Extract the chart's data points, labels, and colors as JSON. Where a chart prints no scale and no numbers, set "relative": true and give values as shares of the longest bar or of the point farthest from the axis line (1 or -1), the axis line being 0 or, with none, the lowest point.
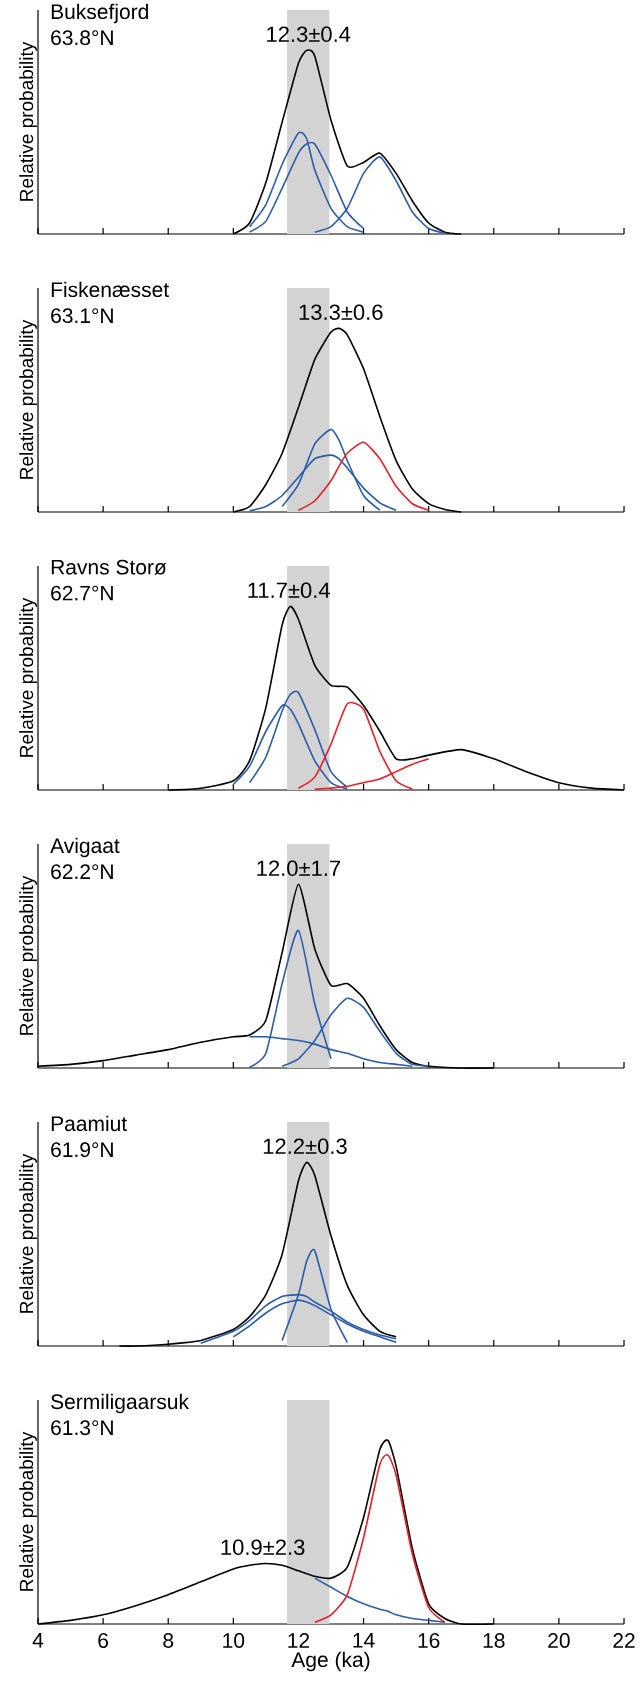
{
  "chart_data": [
    {
      "type": "line",
      "title": "Buksefjord",
      "subtitle": "63.8°N",
      "ylabel": "Relative probability",
      "relative": true,
      "tick_labels": false,
      "xlim": [
        4,
        22
      ],
      "xticks": [
        4,
        6,
        8,
        10,
        12,
        14,
        16,
        18,
        20,
        22
      ],
      "bands": [
        {
          "axis": "x",
          "from": 11.65,
          "to": 12.95,
          "color": "#d3d3d3"
        }
      ],
      "annotations": [
        {
          "text": "12.3±0.4",
          "x": 12.3,
          "y": 1
        }
      ],
      "series": [
        {
          "color": "#000000",
          "x": [
            10,
            10.5,
            11,
            11.5,
            12,
            12.25,
            12.5,
            13,
            13.5,
            14,
            14.5,
            15,
            15.5,
            16,
            16.5,
            17
          ],
          "values": [
            0,
            0.06,
            0.28,
            0.61,
            0.93,
            1,
            0.97,
            0.62,
            0.37,
            0.39,
            0.44,
            0.33,
            0.18,
            0.06,
            0.01,
            0
          ]
        },
        {
          "color": "#2a5caa",
          "x": [
            10.5,
            11,
            11.5,
            12,
            12.25,
            12.5,
            13,
            13.5,
            14
          ],
          "values": [
            0.04,
            0.16,
            0.38,
            0.55,
            0.52,
            0.35,
            0.14,
            0.04,
            0.01
          ]
        },
        {
          "color": "#2a5caa",
          "x": [
            10.5,
            11,
            11.5,
            12,
            12.25,
            12.5,
            13,
            13.5,
            14
          ],
          "values": [
            0.01,
            0.07,
            0.25,
            0.44,
            0.49,
            0.49,
            0.32,
            0.12,
            0.03
          ]
        },
        {
          "color": "#2a5caa",
          "x": [
            12.5,
            13,
            13.5,
            14,
            14.5,
            15,
            15.5,
            16,
            16.5
          ],
          "values": [
            0.01,
            0.04,
            0.14,
            0.33,
            0.42,
            0.29,
            0.12,
            0.03,
            0.005
          ]
        }
      ]
    },
    {
      "type": "line",
      "title": "Fiskenæsset",
      "subtitle": "63.1°N",
      "ylabel": "Relative probability",
      "relative": true,
      "tick_labels": false,
      "xlim": [
        4,
        22
      ],
      "xticks": [
        4,
        6,
        8,
        10,
        12,
        14,
        16,
        18,
        20,
        22
      ],
      "bands": [
        {
          "axis": "x",
          "from": 11.65,
          "to": 12.95,
          "color": "#d3d3d3"
        }
      ],
      "annotations": [
        {
          "text": "13.3±0.6",
          "x": 13.3,
          "y": 1
        }
      ],
      "series": [
        {
          "color": "#000000",
          "x": [
            10,
            10.5,
            11,
            11.5,
            12,
            12.5,
            13,
            13.25,
            13.5,
            14,
            14.5,
            15,
            15.5,
            16,
            16.5,
            17
          ],
          "values": [
            0,
            0.03,
            0.15,
            0.32,
            0.57,
            0.83,
            0.98,
            1,
            0.965,
            0.78,
            0.52,
            0.28,
            0.125,
            0.046,
            0.014,
            0
          ]
        },
        {
          "color": "#2a5caa",
          "x": [
            11.5,
            12,
            12.5,
            13,
            13.25,
            13.5,
            14,
            14.5
          ],
          "values": [
            0.03,
            0.15,
            0.37,
            0.45,
            0.39,
            0.28,
            0.09,
            0.01
          ]
        },
        {
          "color": "#2a5caa",
          "x": [
            10.5,
            11,
            11.5,
            12,
            12.5,
            13,
            13.25,
            13.5,
            14,
            14.5,
            15
          ],
          "values": [
            0.007,
            0.03,
            0.09,
            0.19,
            0.29,
            0.31,
            0.29,
            0.24,
            0.13,
            0.05,
            0.01
          ]
        },
        {
          "color": "#e3202a",
          "x": [
            12,
            12.5,
            13,
            13.25,
            13.5,
            14,
            14.5,
            15,
            15.5,
            16
          ],
          "values": [
            0.01,
            0.06,
            0.17,
            0.25,
            0.32,
            0.38,
            0.29,
            0.14,
            0.045,
            0.01
          ]
        }
      ]
    },
    {
      "type": "line",
      "title": "Ravns Storø",
      "subtitle": "62.7°N",
      "ylabel": "Relative probability",
      "relative": true,
      "tick_labels": false,
      "xlim": [
        4,
        22
      ],
      "xticks": [
        4,
        6,
        8,
        10,
        12,
        14,
        16,
        18,
        20,
        22
      ],
      "bands": [
        {
          "axis": "x",
          "from": 11.65,
          "to": 12.95,
          "color": "#d3d3d3"
        }
      ],
      "annotations": [
        {
          "text": "11.7±0.4",
          "x": 11.7,
          "y": 1
        }
      ],
      "series": [
        {
          "color": "#000000",
          "x": [
            8,
            9,
            10,
            10.5,
            11,
            11.5,
            11.75,
            12,
            12.5,
            13,
            13.5,
            14,
            14.5,
            15,
            15.5,
            16,
            17,
            18,
            19,
            20,
            21,
            22
          ],
          "values": [
            0,
            0.01,
            0.05,
            0.16,
            0.45,
            0.9,
            1,
            0.93,
            0.68,
            0.57,
            0.56,
            0.46,
            0.32,
            0.17,
            0.17,
            0.19,
            0.22,
            0.17,
            0.1,
            0.04,
            0.01,
            0
          ]
        },
        {
          "color": "#2a5caa",
          "x": [
            10,
            10.5,
            11,
            11.5,
            11.75,
            12,
            12.5,
            13,
            13.5
          ],
          "values": [
            0.03,
            0.13,
            0.32,
            0.46,
            0.44,
            0.36,
            0.16,
            0.04,
            0.005
          ]
        },
        {
          "color": "#2a5caa",
          "x": [
            10.5,
            11,
            11.5,
            11.75,
            12,
            12.5,
            13,
            13.5
          ],
          "values": [
            0.04,
            0.18,
            0.43,
            0.52,
            0.53,
            0.33,
            0.1,
            0.015
          ]
        },
        {
          "color": "#e3202a",
          "x": [
            12,
            12.5,
            13,
            13.5,
            14,
            14.5,
            15,
            15.5
          ],
          "values": [
            0.01,
            0.07,
            0.25,
            0.47,
            0.44,
            0.21,
            0.05,
            0.005
          ]
        },
        {
          "color": "#e3202a",
          "x": [
            12.5,
            13,
            13.5,
            14,
            14.5,
            15,
            15.5,
            16
          ],
          "values": [
            0.004,
            0.01,
            0.02,
            0.04,
            0.06,
            0.1,
            0.14,
            0.17
          ]
        }
      ]
    },
    {
      "type": "line",
      "title": "Avigaat",
      "subtitle": "62.2°N",
      "ylabel": "Relative probability",
      "relative": true,
      "tick_labels": false,
      "xlim": [
        4,
        22
      ],
      "xticks": [
        4,
        6,
        8,
        10,
        12,
        14,
        16,
        18,
        20,
        22
      ],
      "bands": [
        {
          "axis": "x",
          "from": 11.65,
          "to": 12.95,
          "color": "#d3d3d3"
        }
      ],
      "annotations": [
        {
          "text": "12.0±1.7",
          "x": 12.0,
          "y": 1
        }
      ],
      "series": [
        {
          "color": "#000000",
          "x": [
            4,
            5,
            6,
            7,
            8,
            9,
            10,
            10.5,
            11,
            11.5,
            12,
            12.5,
            13,
            13.5,
            14,
            14.5,
            15,
            15.5,
            16,
            17,
            18
          ],
          "values": [
            0.01,
            0.02,
            0.04,
            0.07,
            0.1,
            0.14,
            0.17,
            0.18,
            0.26,
            0.63,
            1,
            0.65,
            0.45,
            0.46,
            0.38,
            0.23,
            0.1,
            0.03,
            0.01,
            0,
            0
          ]
        },
        {
          "color": "#2a5caa",
          "x": [
            10.5,
            11,
            11.5,
            12,
            12.5,
            13
          ],
          "values": [
            0.004,
            0.08,
            0.46,
            0.75,
            0.35,
            0.05
          ]
        },
        {
          "color": "#2a5caa",
          "x": [
            11.5,
            12,
            12.5,
            13,
            13.5,
            14,
            14.5,
            15,
            15.5,
            16
          ],
          "values": [
            0.01,
            0.05,
            0.15,
            0.29,
            0.38,
            0.33,
            0.2,
            0.08,
            0.02,
            0.01
          ]
        },
        {
          "color": "#2a5caa",
          "x": [
            10.5,
            11,
            11.5,
            12,
            12.5,
            13,
            13.5,
            14,
            14.5,
            15,
            15.5
          ],
          "values": [
            0.17,
            0.17,
            0.16,
            0.15,
            0.13,
            0.1,
            0.08,
            0.05,
            0.03,
            0.02,
            0.01
          ]
        }
      ]
    },
    {
      "type": "line",
      "title": "Paamiut",
      "subtitle": "61.9°N",
      "ylabel": "Relative probability",
      "relative": true,
      "tick_labels": false,
      "xlim": [
        4,
        22
      ],
      "xticks": [
        4,
        6,
        8,
        10,
        12,
        14,
        16,
        18,
        20,
        22
      ],
      "bands": [
        {
          "axis": "x",
          "from": 11.65,
          "to": 12.95,
          "color": "#d3d3d3"
        }
      ],
      "annotations": [
        {
          "text": "12.2±0.3",
          "x": 12.2,
          "y": 1
        }
      ],
      "series": [
        {
          "color": "#000000",
          "x": [
            6.5,
            7,
            8,
            9,
            10,
            10.5,
            11,
            11.5,
            12,
            12.25,
            12.5,
            13,
            13.5,
            14,
            14.5,
            15
          ],
          "values": [
            0,
            0,
            0.01,
            0.03,
            0.09,
            0.16,
            0.28,
            0.5,
            0.9,
            1,
            0.93,
            0.6,
            0.33,
            0.17,
            0.08,
            0.05
          ]
        },
        {
          "color": "#2a5caa",
          "x": [
            11.5,
            12,
            12.25,
            12.5,
            13,
            13.5
          ],
          "values": [
            0.03,
            0.28,
            0.46,
            0.52,
            0.2,
            0.02
          ]
        },
        {
          "color": "#2a5caa",
          "x": [
            9,
            10,
            10.5,
            11,
            11.5,
            12,
            12.25,
            12.5,
            13,
            13.5,
            14,
            14.5,
            15
          ],
          "values": [
            0.015,
            0.08,
            0.14,
            0.22,
            0.27,
            0.28,
            0.27,
            0.24,
            0.19,
            0.13,
            0.09,
            0.06,
            0.04
          ]
        },
        {
          "color": "#2a5caa",
          "x": [
            10,
            10.5,
            11,
            11.5,
            12,
            12.25,
            12.5,
            13,
            13.5,
            14,
            14.5,
            15
          ],
          "values": [
            0.05,
            0.11,
            0.18,
            0.23,
            0.25,
            0.24,
            0.22,
            0.17,
            0.12,
            0.08,
            0.05,
            0.02
          ]
        }
      ]
    },
    {
      "type": "line",
      "title": "Sermiligaarsuk",
      "subtitle": "61.3°N",
      "ylabel": "Relative probability",
      "xlabel": "Age (ka)",
      "relative": true,
      "tick_labels": "x",
      "xlim": [
        4,
        22
      ],
      "xticks": [
        4,
        6,
        8,
        10,
        12,
        14,
        16,
        18,
        20,
        22
      ],
      "bands": [
        {
          "axis": "x",
          "from": 11.65,
          "to": 12.95,
          "color": "#d3d3d3"
        }
      ],
      "annotations": [
        {
          "text": "10.9±2.3",
          "x": 10.9,
          "y": 0.33
        }
      ],
      "series": [
        {
          "color": "#000000",
          "x": [
            4,
            5,
            6,
            7,
            8,
            9,
            10,
            10.5,
            11,
            11.5,
            12,
            12.5,
            13,
            13.5,
            14,
            14.5,
            14.75,
            15,
            15.5,
            16,
            16.5,
            17,
            18
          ],
          "values": [
            0,
            0.02,
            0.05,
            0.1,
            0.16,
            0.23,
            0.3,
            0.32,
            0.33,
            0.32,
            0.29,
            0.26,
            0.25,
            0.31,
            0.58,
            0.95,
            1,
            0.86,
            0.41,
            0.11,
            0.03,
            0,
            0
          ]
        },
        {
          "color": "#2a5caa",
          "x": [
            12.5,
            13,
            13.5,
            14,
            14.5,
            14.75,
            15,
            15.5,
            16,
            16.5
          ],
          "values": [
            0.25,
            0.2,
            0.15,
            0.11,
            0.08,
            0.07,
            0.05,
            0.03,
            0.02,
            0.01
          ]
        },
        {
          "color": "#e3202a",
          "x": [
            12.5,
            13,
            13.5,
            14,
            14.5,
            14.75,
            15,
            15.5,
            16,
            16.5
          ],
          "values": [
            0.01,
            0.05,
            0.16,
            0.47,
            0.87,
            0.92,
            0.81,
            0.38,
            0.09,
            0.01
          ]
        }
      ]
    }
  ]
}
